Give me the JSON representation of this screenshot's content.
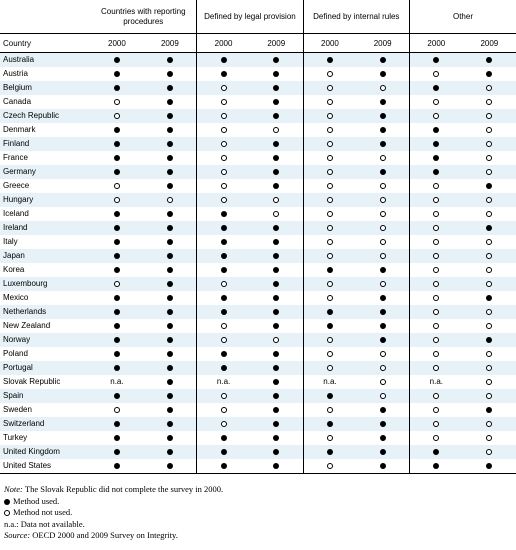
{
  "header": {
    "groups": [
      "Countries with reporting procedures",
      "Defined by legal provision",
      "Defined by internal rules",
      "Other"
    ],
    "country_label": "Country",
    "years": [
      "2000",
      "2009"
    ],
    "na_label": "n.a."
  },
  "rows": [
    {
      "country": "Australia",
      "v": [
        "U",
        "U",
        "U",
        "U",
        "U",
        "U",
        "U",
        "U"
      ]
    },
    {
      "country": "Austria",
      "v": [
        "U",
        "U",
        "U",
        "U",
        "N",
        "U",
        "N",
        "U"
      ]
    },
    {
      "country": "Belgium",
      "v": [
        "U",
        "U",
        "N",
        "U",
        "N",
        "N",
        "U",
        "N"
      ]
    },
    {
      "country": "Canada",
      "v": [
        "N",
        "U",
        "N",
        "U",
        "N",
        "U",
        "N",
        "N"
      ]
    },
    {
      "country": "Czech Republic",
      "v": [
        "N",
        "U",
        "N",
        "U",
        "N",
        "U",
        "N",
        "N"
      ]
    },
    {
      "country": "Denmark",
      "v": [
        "U",
        "U",
        "N",
        "N",
        "N",
        "U",
        "U",
        "N"
      ]
    },
    {
      "country": "Finland",
      "v": [
        "U",
        "U",
        "N",
        "U",
        "N",
        "U",
        "U",
        "N"
      ]
    },
    {
      "country": "France",
      "v": [
        "U",
        "U",
        "N",
        "U",
        "N",
        "N",
        "U",
        "N"
      ]
    },
    {
      "country": "Germany",
      "v": [
        "U",
        "U",
        "N",
        "U",
        "N",
        "U",
        "U",
        "N"
      ]
    },
    {
      "country": "Greece",
      "v": [
        "N",
        "U",
        "N",
        "U",
        "N",
        "N",
        "N",
        "U"
      ]
    },
    {
      "country": "Hungary",
      "v": [
        "N",
        "N",
        "N",
        "N",
        "N",
        "N",
        "N",
        "N"
      ]
    },
    {
      "country": "Iceland",
      "v": [
        "U",
        "U",
        "U",
        "N",
        "N",
        "N",
        "N",
        "N"
      ]
    },
    {
      "country": "Ireland",
      "v": [
        "U",
        "U",
        "U",
        "U",
        "N",
        "N",
        "N",
        "U"
      ]
    },
    {
      "country": "Italy",
      "v": [
        "U",
        "U",
        "U",
        "U",
        "N",
        "N",
        "N",
        "N"
      ]
    },
    {
      "country": "Japan",
      "v": [
        "U",
        "U",
        "U",
        "U",
        "N",
        "N",
        "N",
        "N"
      ]
    },
    {
      "country": "Korea",
      "v": [
        "U",
        "U",
        "U",
        "U",
        "U",
        "U",
        "N",
        "N"
      ]
    },
    {
      "country": "Luxembourg",
      "v": [
        "N",
        "U",
        "N",
        "U",
        "N",
        "N",
        "N",
        "N"
      ]
    },
    {
      "country": "Mexico",
      "v": [
        "U",
        "U",
        "U",
        "U",
        "N",
        "U",
        "N",
        "U"
      ]
    },
    {
      "country": "Netherlands",
      "v": [
        "U",
        "U",
        "U",
        "U",
        "U",
        "U",
        "N",
        "N"
      ]
    },
    {
      "country": "New Zealand",
      "v": [
        "U",
        "U",
        "N",
        "U",
        "U",
        "U",
        "N",
        "N"
      ]
    },
    {
      "country": "Norway",
      "v": [
        "U",
        "U",
        "N",
        "N",
        "N",
        "U",
        "N",
        "U"
      ]
    },
    {
      "country": "Poland",
      "v": [
        "U",
        "U",
        "U",
        "U",
        "N",
        "N",
        "N",
        "N"
      ]
    },
    {
      "country": "Portugal",
      "v": [
        "U",
        "U",
        "U",
        "U",
        "N",
        "N",
        "N",
        "N"
      ]
    },
    {
      "country": "Slovak Republic",
      "v": [
        "na",
        "U",
        "na",
        "U",
        "na",
        "N",
        "na",
        "N"
      ]
    },
    {
      "country": "Spain",
      "v": [
        "U",
        "U",
        "N",
        "U",
        "U",
        "N",
        "N",
        "N"
      ]
    },
    {
      "country": "Sweden",
      "v": [
        "N",
        "U",
        "N",
        "U",
        "N",
        "U",
        "N",
        "U"
      ]
    },
    {
      "country": "Switzerland",
      "v": [
        "U",
        "U",
        "N",
        "U",
        "U",
        "U",
        "N",
        "N"
      ]
    },
    {
      "country": "Turkey",
      "v": [
        "U",
        "U",
        "U",
        "U",
        "N",
        "U",
        "N",
        "N"
      ]
    },
    {
      "country": "United Kingdom",
      "v": [
        "U",
        "U",
        "U",
        "U",
        "U",
        "U",
        "U",
        "N"
      ]
    },
    {
      "country": "United States",
      "v": [
        "U",
        "U",
        "U",
        "U",
        "N",
        "U",
        "U",
        "U"
      ]
    }
  ],
  "notes": {
    "note_label": "Note:",
    "note_text": "The Slovak Republic did not complete the survey in 2000.",
    "legend_used": "Method used.",
    "legend_not_used": "Method not used.",
    "legend_na": "n.a.: Data not available.",
    "source_label": "Source:",
    "source_text": "OECD 2000 and 2009 Survey on Integrity."
  }
}
